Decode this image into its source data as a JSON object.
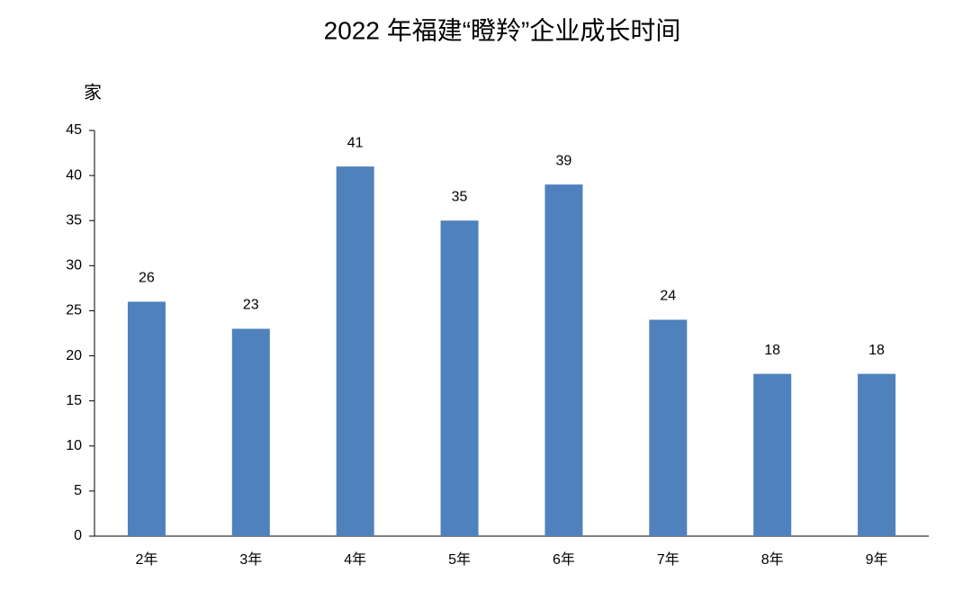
{
  "chart_data": {
    "type": "bar",
    "title": "2022 年福建“瞪羚”企业成长时间",
    "y_label": "家",
    "categories": [
      "2年",
      "3年",
      "4年",
      "5年",
      "6年",
      "7年",
      "8年",
      "9年"
    ],
    "values": [
      26,
      23,
      41,
      35,
      39,
      24,
      18,
      18
    ],
    "color": "#4f81bd",
    "ylim": [
      0,
      45
    ],
    "yticks": [
      0,
      5,
      10,
      15,
      20,
      25,
      30,
      35,
      40,
      45
    ],
    "data_labels": true
  }
}
